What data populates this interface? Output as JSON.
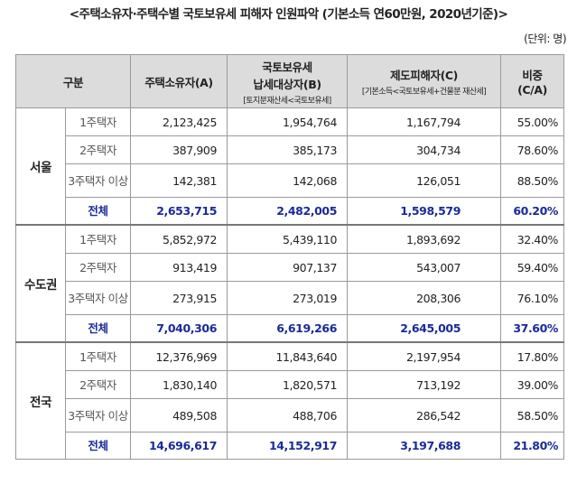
{
  "title": "<주택소유자·주택수별 국토보유세 피해자 인원파악 (기본소득 연60만원, 2020년기준)>",
  "unit": "(단위: 명)",
  "header": {
    "category": "구분",
    "owners": "주택소유자(A)",
    "taxpayers_line1": "국토보유세",
    "taxpayers_line2": "납세대상자(B)",
    "taxpayers_sub": "[토지분재산세<국토보유세]",
    "victims": "제도피해자(C)",
    "victims_sub": "[기본소득<국토보유세+건물분 재산세]",
    "ratio_line1": "비중",
    "ratio_line2": "(C/A)"
  },
  "regions": [
    {
      "name": "서울",
      "rows": [
        {
          "kind": "1주택자",
          "a": "2,123,425",
          "b": "1,954,764",
          "c": "1,167,794",
          "ratio": "55.00%"
        },
        {
          "kind": "2주택자",
          "a": "387,909",
          "b": "385,173",
          "c": "304,734",
          "ratio": "78.60%"
        },
        {
          "kind": "3주택자 이상",
          "a": "142,381",
          "b": "142,068",
          "c": "126,051",
          "ratio": "88.50%"
        }
      ],
      "total": {
        "kind": "전체",
        "a": "2,653,715",
        "b": "2,482,005",
        "c": "1,598,579",
        "ratio": "60.20%"
      }
    },
    {
      "name": "수도권",
      "rows": [
        {
          "kind": "1주택자",
          "a": "5,852,972",
          "b": "5,439,110",
          "c": "1,893,692",
          "ratio": "32.40%"
        },
        {
          "kind": "2주택자",
          "a": "913,419",
          "b": "907,137",
          "c": "543,007",
          "ratio": "59.40%"
        },
        {
          "kind": "3주택자 이상",
          "a": "273,915",
          "b": "273,019",
          "c": "208,306",
          "ratio": "76.10%"
        }
      ],
      "total": {
        "kind": "전체",
        "a": "7,040,306",
        "b": "6,619,266",
        "c": "2,645,005",
        "ratio": "37.60%"
      }
    },
    {
      "name": "전국",
      "rows": [
        {
          "kind": "1주택자",
          "a": "12,376,969",
          "b": "11,843,640",
          "c": "2,197,954",
          "ratio": "17.80%"
        },
        {
          "kind": "2주택자",
          "a": "1,830,140",
          "b": "1,820,571",
          "c": "713,192",
          "ratio": "39.00%"
        },
        {
          "kind": "3주택자 이상",
          "a": "489,508",
          "b": "488,706",
          "c": "286,542",
          "ratio": "58.50%"
        }
      ],
      "total": {
        "kind": "전체",
        "a": "14,696,617",
        "b": "14,152,917",
        "c": "3,197,688",
        "ratio": "21.80%"
      }
    }
  ]
}
